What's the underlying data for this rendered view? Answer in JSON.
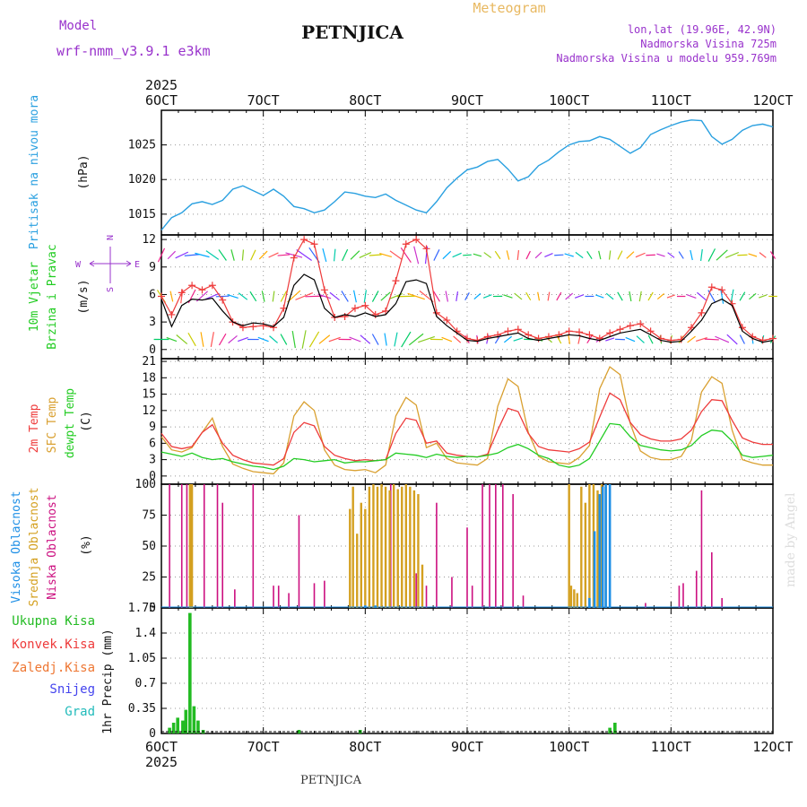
{
  "header": {
    "model_label": "Model",
    "model_name": "wrf-nmm_v3.9.1 e3km",
    "title": "PETNJICA",
    "subtitle": "Meteogram",
    "coords": "lon,lat (19.96E, 42.9N)",
    "elevation": "Nadmorska Visina 725m",
    "model_elevation": "Nadmorska Visina u modelu 959.769m",
    "footer_title": "PETNJICA",
    "watermark": "made by Angel"
  },
  "colors": {
    "pressure": "#2aa0e0",
    "temp2m": "#ee3b3b",
    "sfc": "#d9a030",
    "dewpt": "#22cc22",
    "high_cloud": "#1e8fe6",
    "mid_cloud": "#d4a020",
    "low_cloud": "#cc1080",
    "precip": "#22bb22",
    "title_purple": "#9933cc",
    "subtitle_gold": "#e8b860"
  },
  "chart_data": [
    {
      "id": "pressure",
      "type": "line",
      "ylabel": [
        "Pritisak na nivou mora",
        "(hPa)"
      ],
      "yticks": [
        1015,
        1020,
        1025
      ],
      "ylim": [
        1012,
        1030
      ],
      "x": [
        6.0,
        6.1,
        6.2,
        6.3,
        6.4,
        6.5,
        6.6,
        6.7,
        6.8,
        6.9,
        7.0,
        7.1,
        7.2,
        7.3,
        7.4,
        7.5,
        7.6,
        7.7,
        7.8,
        7.9,
        8.0,
        8.1,
        8.2,
        8.3,
        8.4,
        8.5,
        8.6,
        8.7,
        8.8,
        8.9,
        9.0,
        9.1,
        9.2,
        9.3,
        9.4,
        9.5,
        9.6,
        9.7,
        9.8,
        9.9,
        10.0,
        10.1,
        10.2,
        10.3,
        10.4,
        10.5,
        10.6,
        10.7,
        10.8,
        10.9,
        11.0,
        11.1,
        11.2,
        11.3,
        11.4,
        11.5,
        11.6,
        11.7,
        11.8,
        11.9,
        12.0
      ],
      "values": [
        1012.7,
        1014.5,
        1015.2,
        1016.5,
        1016.8,
        1016.4,
        1017.0,
        1018.6,
        1019.1,
        1018.4,
        1017.7,
        1018.6,
        1017.6,
        1016.1,
        1015.8,
        1015.2,
        1015.6,
        1016.8,
        1018.2,
        1018.0,
        1017.6,
        1017.4,
        1017.9,
        1017.0,
        1016.3,
        1015.6,
        1015.2,
        1016.8,
        1018.8,
        1020.2,
        1021.4,
        1021.8,
        1022.6,
        1022.9,
        1021.5,
        1019.8,
        1020.4,
        1022.0,
        1022.8,
        1024.0,
        1025.0,
        1025.5,
        1025.6,
        1026.2,
        1025.8,
        1024.8,
        1023.8,
        1024.6,
        1026.5,
        1027.2,
        1027.8,
        1028.3,
        1028.6,
        1028.5,
        1026.2,
        1025.1,
        1025.8,
        1027.1,
        1027.8,
        1028.0,
        1027.6
      ],
      "x_axis_top": [
        "6OCT",
        "7OCT",
        "8OCT",
        "9OCT",
        "10OCT",
        "11OCT",
        "12OCT"
      ],
      "year": "2025"
    },
    {
      "id": "wind",
      "type": "line",
      "ylabel": [
        "10m Vjetar",
        "Brzina i Pravac",
        "(m/s)"
      ],
      "compass": {
        "n": "N",
        "s": "S",
        "e": "E",
        "w": "W"
      },
      "yticks": [
        0,
        3,
        6,
        9,
        12
      ],
      "ylim": [
        -1,
        12.5
      ],
      "x": [
        6.0,
        6.1,
        6.2,
        6.3,
        6.4,
        6.5,
        6.6,
        6.7,
        6.8,
        6.9,
        7.0,
        7.1,
        7.2,
        7.3,
        7.4,
        7.5,
        7.6,
        7.7,
        7.8,
        7.9,
        8.0,
        8.1,
        8.2,
        8.3,
        8.4,
        8.5,
        8.6,
        8.7,
        8.8,
        8.9,
        9.0,
        9.1,
        9.2,
        9.3,
        9.4,
        9.5,
        9.6,
        9.7,
        9.8,
        9.9,
        10.0,
        10.1,
        10.2,
        10.3,
        10.4,
        10.5,
        10.6,
        10.7,
        10.8,
        10.9,
        11.0,
        11.1,
        11.2,
        11.3,
        11.4,
        11.5,
        11.6,
        11.7,
        11.8,
        11.9,
        12.0
      ],
      "speed": [
        5.5,
        2.5,
        4.8,
        5.5,
        5.4,
        5.6,
        4.2,
        3.0,
        2.6,
        2.9,
        2.8,
        2.5,
        3.5,
        7.0,
        8.2,
        7.6,
        4.5,
        3.5,
        3.8,
        3.6,
        4.0,
        3.6,
        3.8,
        5.0,
        7.4,
        7.6,
        7.2,
        3.6,
        2.6,
        1.8,
        1.0,
        0.9,
        1.2,
        1.4,
        1.6,
        1.8,
        1.2,
        1.0,
        1.2,
        1.4,
        1.6,
        1.5,
        1.2,
        1.0,
        1.4,
        1.8,
        2.0,
        2.2,
        1.6,
        1.0,
        0.8,
        0.9,
        2.0,
        3.2,
        5.0,
        5.5,
        4.8,
        2.0,
        1.2,
        0.8,
        1.0
      ],
      "gust": [
        5.8,
        3.8,
        6.2,
        7.0,
        6.5,
        7.0,
        5.4,
        3.0,
        2.4,
        2.5,
        2.6,
        2.4,
        4.5,
        10.0,
        12.0,
        11.5,
        6.5,
        3.5,
        3.6,
        4.5,
        4.8,
        3.8,
        4.2,
        7.5,
        11.5,
        12.0,
        11.0,
        4.0,
        3.2,
        2.0,
        1.2,
        1.0,
        1.4,
        1.6,
        2.0,
        2.2,
        1.6,
        1.2,
        1.4,
        1.6,
        2.0,
        1.9,
        1.6,
        1.2,
        1.8,
        2.2,
        2.6,
        2.8,
        2.0,
        1.2,
        1.0,
        1.1,
        2.4,
        4.0,
        6.8,
        6.5,
        5.0,
        2.4,
        1.4,
        1.0,
        1.2
      ]
    },
    {
      "id": "temperature",
      "type": "line",
      "ylabel": [
        "2m Temp",
        "SFC Temp",
        "dewpt Temp",
        "(C)"
      ],
      "yticks": [
        0,
        3,
        6,
        9,
        12,
        15,
        18,
        21
      ],
      "ylim": [
        -1.5,
        21.5
      ],
      "x": [
        6.0,
        6.1,
        6.2,
        6.3,
        6.4,
        6.5,
        6.6,
        6.7,
        6.8,
        6.9,
        7.0,
        7.1,
        7.2,
        7.3,
        7.4,
        7.5,
        7.6,
        7.7,
        7.8,
        7.9,
        8.0,
        8.1,
        8.2,
        8.3,
        8.4,
        8.5,
        8.6,
        8.7,
        8.8,
        8.9,
        9.0,
        9.1,
        9.2,
        9.3,
        9.4,
        9.5,
        9.6,
        9.7,
        9.8,
        9.9,
        10.0,
        10.1,
        10.2,
        10.3,
        10.4,
        10.5,
        10.6,
        10.7,
        10.8,
        10.9,
        11.0,
        11.1,
        11.2,
        11.3,
        11.4,
        11.5,
        11.6,
        11.7,
        11.8,
        11.9,
        12.0
      ],
      "series": [
        {
          "name": "2m Temp",
          "values": [
            7.8,
            5.4,
            5.0,
            5.4,
            8.0,
            9.4,
            6.0,
            3.8,
            3.0,
            2.4,
            2.2,
            2.0,
            3.2,
            8.0,
            9.8,
            9.2,
            5.4,
            3.8,
            3.2,
            2.8,
            3.0,
            2.8,
            3.0,
            7.8,
            10.6,
            10.2,
            6.0,
            6.4,
            4.2,
            3.8,
            3.6,
            3.5,
            4.0,
            8.4,
            12.4,
            11.8,
            7.8,
            5.4,
            4.8,
            4.6,
            4.4,
            5.0,
            6.2,
            10.8,
            15.2,
            14.0,
            9.8,
            7.6,
            6.8,
            6.4,
            6.4,
            6.8,
            8.4,
            11.8,
            14.0,
            13.8,
            10.2,
            7.0,
            6.2,
            5.8,
            5.8
          ]
        },
        {
          "name": "SFC Temp",
          "values": [
            7.2,
            4.8,
            4.4,
            5.2,
            8.0,
            10.6,
            5.4,
            2.2,
            1.4,
            0.8,
            0.6,
            0.4,
            2.4,
            11.0,
            13.6,
            12.0,
            4.8,
            2.0,
            1.2,
            1.0,
            1.2,
            0.6,
            2.0,
            11.0,
            14.4,
            13.0,
            5.2,
            6.0,
            3.2,
            2.4,
            2.2,
            2.0,
            3.2,
            12.8,
            17.8,
            16.4,
            8.0,
            3.6,
            2.6,
            2.4,
            2.2,
            3.4,
            5.6,
            16.0,
            20.0,
            18.6,
            9.6,
            4.6,
            3.4,
            3.0,
            3.0,
            3.6,
            6.6,
            15.4,
            18.2,
            17.0,
            8.4,
            3.0,
            2.4,
            2.0,
            2.0
          ]
        },
        {
          "name": "dewpt Temp",
          "values": [
            4.4,
            4.0,
            3.6,
            4.2,
            3.4,
            3.0,
            3.2,
            2.6,
            2.2,
            1.8,
            1.6,
            1.2,
            1.8,
            3.2,
            3.0,
            2.6,
            2.8,
            3.0,
            2.4,
            2.6,
            2.6,
            2.8,
            3.0,
            4.2,
            4.0,
            3.8,
            3.4,
            4.0,
            3.6,
            3.4,
            3.6,
            3.5,
            3.8,
            4.2,
            5.2,
            5.8,
            5.0,
            3.8,
            3.2,
            2.0,
            1.6,
            2.0,
            3.2,
            6.4,
            9.6,
            9.4,
            7.2,
            5.6,
            5.2,
            4.8,
            4.6,
            4.8,
            5.6,
            7.4,
            8.4,
            8.2,
            6.4,
            3.8,
            3.4,
            3.6,
            3.8
          ]
        }
      ]
    },
    {
      "id": "clouds",
      "type": "bar",
      "ylabel": [
        "Visoka Oblacnost",
        "Srednja Oblacnost",
        "Niska Oblacnost",
        "(%)"
      ],
      "yticks": [
        0,
        25,
        50,
        75,
        100
      ],
      "ylim": [
        0,
        100
      ],
      "series": [
        {
          "name": "Niska",
          "x": [
            6.08,
            6.2,
            6.25,
            6.28,
            6.42,
            6.55,
            6.6,
            6.72,
            6.9,
            7.1,
            7.15,
            7.25,
            7.35,
            7.5,
            7.6,
            8.25,
            8.5,
            8.6,
            8.7,
            8.85,
            9.0,
            9.05,
            9.15,
            9.22,
            9.28,
            9.35,
            9.45,
            9.55,
            10.75,
            11.08,
            11.12,
            11.25,
            11.3,
            11.4,
            11.5
          ],
          "values": [
            100,
            100,
            100,
            100,
            100,
            100,
            85,
            15,
            100,
            18,
            18,
            12,
            75,
            20,
            22,
            100,
            28,
            18,
            85,
            25,
            65,
            18,
            100,
            100,
            100,
            100,
            92,
            10,
            4,
            18,
            20,
            30,
            95,
            45,
            8
          ]
        },
        {
          "name": "Srednja",
          "x": [
            6.28,
            6.3,
            7.85,
            7.88,
            7.92,
            7.96,
            8.0,
            8.04,
            8.08,
            8.12,
            8.16,
            8.2,
            8.24,
            8.28,
            8.32,
            8.36,
            8.4,
            8.44,
            8.48,
            8.52,
            8.56,
            10.0,
            10.02,
            10.05,
            10.08,
            10.12,
            10.16,
            10.2,
            10.24,
            10.28,
            10.32,
            10.36
          ],
          "values": [
            100,
            100,
            80,
            98,
            60,
            85,
            80,
            98,
            100,
            98,
            100,
            98,
            95,
            100,
            96,
            98,
            100,
            98,
            95,
            92,
            35,
            100,
            18,
            15,
            12,
            98,
            85,
            100,
            100,
            95,
            100,
            98
          ]
        },
        {
          "name": "Visoka",
          "x": [
            8.0,
            8.1,
            10.2,
            10.25,
            10.3,
            10.33,
            10.36,
            10.4
          ],
          "values": [
            2,
            2,
            8,
            62,
            92,
            98,
            100,
            100
          ]
        }
      ]
    },
    {
      "id": "precip",
      "type": "bar",
      "ylabel": [
        "1hr Precip (mm)"
      ],
      "legend": [
        "Ukupna Kisa",
        "Konvek.Kisa",
        "Zaledj.Kisa",
        "Snijeg",
        "Grad"
      ],
      "legend_colors": [
        "#22bb22",
        "#ee3b3b",
        "#ee7733",
        "#4444ee",
        "#22bbbb"
      ],
      "yticks": [
        "0",
        "0.35",
        "0.7",
        "1.05",
        "1.4",
        "1.75"
      ],
      "ylim": [
        0,
        1.75
      ],
      "x": [
        6.08,
        6.12,
        6.16,
        6.21,
        6.24,
        6.28,
        6.32,
        6.36,
        6.41,
        7.35,
        7.95,
        10.4,
        10.45
      ],
      "values": [
        0.08,
        0.15,
        0.22,
        0.18,
        0.33,
        1.68,
        0.38,
        0.18,
        0.05,
        0.05,
        0.05,
        0.08,
        0.15
      ],
      "x_axis_bottom": [
        "6OCT",
        "7OCT",
        "8OCT",
        "9OCT",
        "10OCT",
        "11OCT",
        "12OCT"
      ],
      "year": "2025"
    }
  ]
}
